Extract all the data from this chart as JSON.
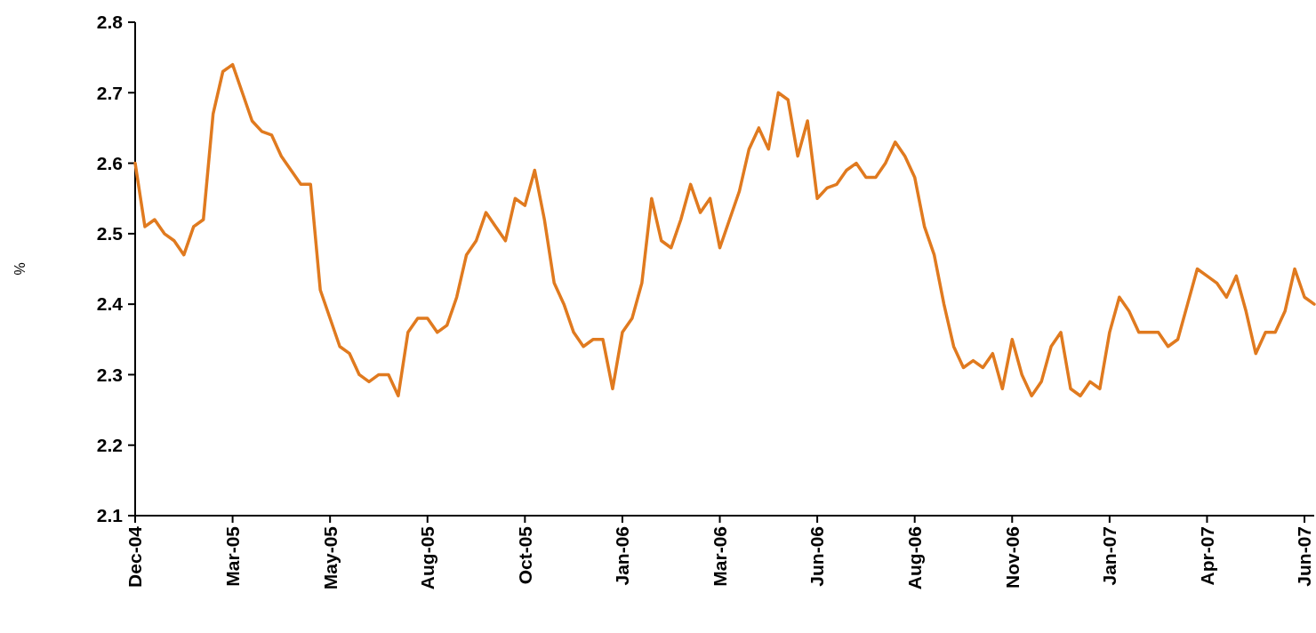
{
  "chart_data": {
    "type": "line",
    "ylabel": "%",
    "categories": [
      "Dec-04",
      null,
      null,
      null,
      null,
      null,
      null,
      null,
      null,
      null,
      "Mar-05",
      null,
      null,
      null,
      null,
      null,
      null,
      null,
      null,
      null,
      "May-05",
      null,
      null,
      null,
      null,
      null,
      null,
      null,
      null,
      null,
      "Aug-05",
      null,
      null,
      null,
      null,
      null,
      null,
      null,
      null,
      null,
      "Oct-05",
      null,
      null,
      null,
      null,
      null,
      null,
      null,
      null,
      null,
      "Jan-06",
      null,
      null,
      null,
      null,
      null,
      null,
      null,
      null,
      null,
      "Mar-06",
      null,
      null,
      null,
      null,
      null,
      null,
      null,
      null,
      null,
      "Jun-06",
      null,
      null,
      null,
      null,
      null,
      null,
      null,
      null,
      null,
      "Aug-06",
      null,
      null,
      null,
      null,
      null,
      null,
      null,
      null,
      null,
      "Nov-06",
      null,
      null,
      null,
      null,
      null,
      null,
      null,
      null,
      null,
      "Jan-07",
      null,
      null,
      null,
      null,
      null,
      null,
      null,
      null,
      null,
      "Apr-07",
      null,
      null,
      null,
      null,
      null,
      null,
      null,
      null,
      null,
      "Jun-07",
      null
    ],
    "series": [
      {
        "color": "#e07a1f",
        "values": [
          2.6,
          2.51,
          2.52,
          2.5,
          2.49,
          2.47,
          2.51,
          2.52,
          2.67,
          2.73,
          2.74,
          2.7,
          2.66,
          2.645,
          2.64,
          2.61,
          2.59,
          2.57,
          2.57,
          2.42,
          2.38,
          2.34,
          2.33,
          2.3,
          2.29,
          2.3,
          2.3,
          2.27,
          2.36,
          2.38,
          2.38,
          2.36,
          2.37,
          2.41,
          2.47,
          2.49,
          2.53,
          2.51,
          2.49,
          2.55,
          2.54,
          2.59,
          2.52,
          2.43,
          2.4,
          2.36,
          2.34,
          2.35,
          2.35,
          2.28,
          2.36,
          2.38,
          2.43,
          2.55,
          2.49,
          2.48,
          2.52,
          2.57,
          2.53,
          2.55,
          2.48,
          2.52,
          2.56,
          2.62,
          2.65,
          2.62,
          2.7,
          2.69,
          2.61,
          2.66,
          2.55,
          2.565,
          2.57,
          2.59,
          2.6,
          2.58,
          2.58,
          2.6,
          2.63,
          2.61,
          2.58,
          2.51,
          2.47,
          2.4,
          2.34,
          2.31,
          2.32,
          2.31,
          2.33,
          2.28,
          2.35,
          2.3,
          2.27,
          2.29,
          2.34,
          2.36,
          2.28,
          2.27,
          2.29,
          2.28,
          2.36,
          2.41,
          2.39,
          2.36,
          2.36,
          2.36,
          2.34,
          2.35,
          2.4,
          2.45,
          2.44,
          2.43,
          2.41,
          2.44,
          2.39,
          2.33,
          2.36,
          2.36,
          2.39,
          2.45,
          2.41,
          2.4
        ]
      }
    ],
    "ylim": [
      2.1,
      2.8
    ],
    "yticks": [
      2.1,
      2.2,
      2.3,
      2.4,
      2.5,
      2.6,
      2.7,
      2.8
    ],
    "marker": "none",
    "line_style": "solid"
  }
}
